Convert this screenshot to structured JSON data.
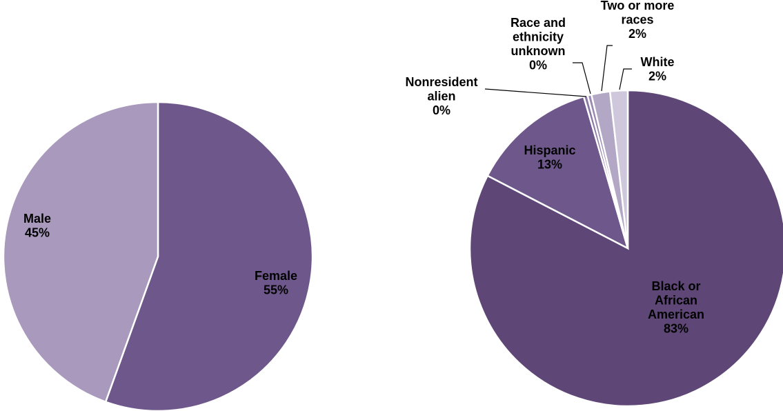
{
  "chart_data": [
    {
      "type": "pie",
      "title": "",
      "colors": {
        "Female": "#6e578a",
        "Male": "#a899bd"
      },
      "slices": [
        {
          "label": "Female",
          "percent_label": "55%",
          "value": 55.5
        },
        {
          "label": "Male",
          "percent_label": "45%",
          "value": 44.5
        }
      ]
    },
    {
      "type": "pie",
      "title": "",
      "colors": {
        "Black or African American": "#5e4676",
        "Hispanic": "#6e578a",
        "Nonresident alien": "#8a78a6",
        "Race and ethnicity unknown": "#9a8ab2",
        "Two or more races": "#b3a7c6",
        "White": "#cfc8dc"
      },
      "slices": [
        {
          "label": "Black or African American",
          "percent_label": "83%",
          "value": 82.6
        },
        {
          "label": "Hispanic",
          "percent_label": "13%",
          "value": 12.9
        },
        {
          "label": "Nonresident alien",
          "percent_label": "0%",
          "value": 0.4
        },
        {
          "label": "Race and ethnicity unknown",
          "percent_label": "0%",
          "value": 0.4
        },
        {
          "label": "Two or more races",
          "percent_label": "2%",
          "value": 1.9
        },
        {
          "label": "White",
          "percent_label": "2%",
          "value": 1.8
        }
      ]
    }
  ]
}
